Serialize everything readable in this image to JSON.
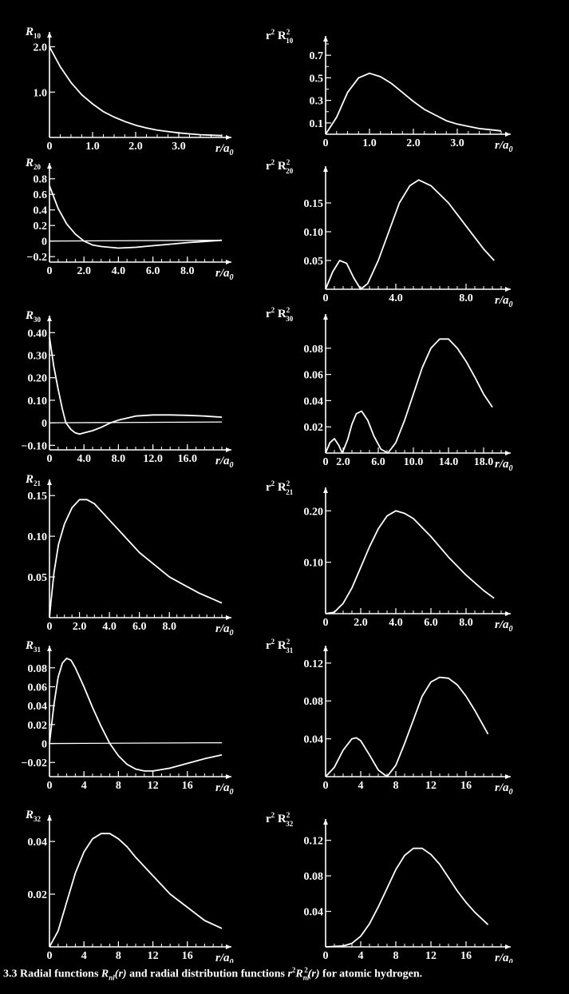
{
  "caption": {
    "number": "3.3",
    "text_a": " Radial functions ",
    "func_R": "R",
    "sub_nl": "nl",
    "arg_r": "(r)",
    "text_b": " and radial distribution functions ",
    "func_r2R2": "r",
    "sup2": "2",
    "R2": "R",
    "sub_nl2": "nl",
    "sup2b": "2",
    "arg_r2": "(r)",
    "text_c": " for atomic hydrogen."
  },
  "chart_data": [
    {
      "id": "R10",
      "type": "line",
      "title_main": "R",
      "title_sub": "10",
      "title_prefix": "",
      "title_sup": "",
      "xlabel": "r/a",
      "xlabel_sub": "0",
      "xlim": [
        0,
        4.0
      ],
      "ylim": [
        0,
        2.15
      ],
      "xticks": [
        0,
        1.0,
        2.0,
        3.0
      ],
      "xtick_labels": [
        "0",
        "1.0",
        "2.0",
        "3.0"
      ],
      "yticks": [
        1.0,
        2.0
      ],
      "ytick_labels": [
        "1.0",
        "2.0"
      ],
      "minor_x": 0.25,
      "zero_line": false,
      "series": [
        {
          "x": [
            0,
            0.25,
            0.5,
            0.75,
            1.0,
            1.25,
            1.5,
            1.75,
            2.0,
            2.25,
            2.5,
            2.75,
            3.0,
            3.25,
            3.5,
            3.75,
            4.0
          ],
          "y": [
            2.0,
            1.56,
            1.21,
            0.94,
            0.74,
            0.57,
            0.45,
            0.35,
            0.27,
            0.21,
            0.16,
            0.13,
            0.1,
            0.08,
            0.06,
            0.05,
            0.04
          ]
        }
      ]
    },
    {
      "id": "r2R10",
      "type": "line",
      "title_main": "R",
      "title_sub": "10",
      "title_prefix": "r",
      "title_sup": "2",
      "title_sup2": "2",
      "xlabel": "r/a",
      "xlabel_sub": "0",
      "xlim": [
        0,
        4.0
      ],
      "ylim": [
        0,
        0.8
      ],
      "xticks": [
        0,
        1.0,
        2.0,
        3.0
      ],
      "xtick_labels": [
        "0",
        "1.0",
        "2.0",
        "3.0"
      ],
      "yticks": [
        0.1,
        0.3,
        0.5,
        0.7
      ],
      "ytick_labels": [
        "0.1",
        "0.3",
        "0.5",
        "0.7"
      ],
      "minor_x": 0.25,
      "minor_y": 0.1,
      "zero_line": false,
      "series": [
        {
          "x": [
            0,
            0.25,
            0.5,
            0.75,
            1.0,
            1.25,
            1.5,
            1.75,
            2.0,
            2.25,
            2.5,
            2.75,
            3.0,
            3.25,
            3.5,
            3.75,
            4.0
          ],
          "y": [
            0,
            0.15,
            0.37,
            0.5,
            0.54,
            0.51,
            0.45,
            0.37,
            0.29,
            0.22,
            0.17,
            0.12,
            0.09,
            0.07,
            0.05,
            0.04,
            0.03
          ]
        }
      ]
    },
    {
      "id": "R20",
      "type": "line",
      "title_main": "R",
      "title_sub": "20",
      "title_prefix": "",
      "title_sup": "",
      "xlabel": "r/a",
      "xlabel_sub": "0",
      "xlim": [
        0,
        10.0
      ],
      "ylim": [
        -0.27,
        0.9
      ],
      "xticks": [
        0,
        2.0,
        4.0,
        6.0,
        8.0
      ],
      "xtick_labels": [
        "0",
        "2.0",
        "4.0",
        "6.0",
        "8.0"
      ],
      "yticks": [
        -0.2,
        0,
        0.2,
        0.4,
        0.6,
        0.8
      ],
      "ytick_labels": [
        "−0.2",
        "0",
        "0.2",
        "0.4",
        "0.6",
        "0.8"
      ],
      "minor_x": 0.5,
      "zero_line": true,
      "series": [
        {
          "x": [
            0,
            0.5,
            1.0,
            1.5,
            2.0,
            2.5,
            3.0,
            4.0,
            5.0,
            6.0,
            7.0,
            8.0,
            9.0,
            10.0
          ],
          "y": [
            0.71,
            0.42,
            0.22,
            0.09,
            0.0,
            -0.05,
            -0.07,
            -0.09,
            -0.08,
            -0.06,
            -0.04,
            -0.02,
            -0.005,
            0.01
          ]
        }
      ]
    },
    {
      "id": "r2R20",
      "type": "line",
      "title_main": "R",
      "title_sub": "20",
      "title_prefix": "r",
      "title_sup": "2",
      "title_sup2": "2",
      "xlabel": "r/a",
      "xlabel_sub": "0",
      "xlim": [
        0,
        10.0
      ],
      "ylim": [
        0,
        0.2
      ],
      "xticks": [
        0,
        4.0,
        8.0
      ],
      "xtick_labels": [
        "0",
        "4.0",
        "8.0"
      ],
      "yticks": [
        0.05,
        0.1,
        0.15
      ],
      "ytick_labels": [
        "0.05",
        "0.10",
        "0.15"
      ],
      "minor_x": 0.5,
      "zero_line": false,
      "series": [
        {
          "x": [
            0,
            0.4,
            0.8,
            1.2,
            1.6,
            2.0,
            2.4,
            3.0,
            3.6,
            4.2,
            4.8,
            5.3,
            6.0,
            7.0,
            8.0,
            9.0,
            9.6
          ],
          "y": [
            0,
            0.03,
            0.05,
            0.045,
            0.02,
            0.0,
            0.01,
            0.05,
            0.1,
            0.15,
            0.18,
            0.19,
            0.18,
            0.15,
            0.11,
            0.07,
            0.05
          ]
        }
      ]
    },
    {
      "id": "R30",
      "type": "line",
      "title_main": "R",
      "title_sub": "30",
      "title_prefix": "",
      "title_sup": "",
      "xlabel": "r/a",
      "xlabel_sub": "0",
      "xlim": [
        0,
        20.0
      ],
      "ylim": [
        -0.12,
        0.44
      ],
      "xticks": [
        0,
        4.0,
        8.0,
        12.0,
        16.0
      ],
      "xtick_labels": [
        "0",
        "4.0",
        "8.0",
        "12.0",
        "16.0"
      ],
      "yticks": [
        -0.1,
        0,
        0.1,
        0.2,
        0.3,
        0.4
      ],
      "ytick_labels": [
        "−0.10",
        "0",
        "0.10",
        "0.20",
        "0.30",
        "0.40"
      ],
      "minor_x": 1.0,
      "zero_line": true,
      "series": [
        {
          "x": [
            0,
            0.5,
            1.0,
            1.5,
            1.9,
            2.5,
            3.0,
            3.5,
            4.0,
            5.0,
            6.0,
            7.1,
            8.0,
            10.0,
            12.0,
            14.0,
            16.0,
            18.0,
            20.0
          ],
          "y": [
            0.38,
            0.25,
            0.15,
            0.06,
            0.0,
            -0.03,
            -0.045,
            -0.05,
            -0.045,
            -0.035,
            -0.02,
            0.0,
            0.012,
            0.03,
            0.035,
            0.035,
            0.033,
            0.03,
            0.025
          ]
        }
      ]
    },
    {
      "id": "r2R30",
      "type": "line",
      "title_main": "R",
      "title_sub": "30",
      "title_prefix": "r",
      "title_sup": "2",
      "title_sup2": "2",
      "xlabel": "r/a",
      "xlabel_sub": "0",
      "xlim": [
        0,
        20.0
      ],
      "ylim": [
        0,
        0.1
      ],
      "xticks": [
        0,
        2.0,
        6.0,
        10.0,
        14.0,
        18.0
      ],
      "xtick_labels": [
        "0",
        "2.0",
        "6.0",
        "10.0",
        "14.0",
        "18.0"
      ],
      "yticks": [
        0.02,
        0.04,
        0.06,
        0.08
      ],
      "ytick_labels": [
        "0.02",
        "0.04",
        "0.06",
        "0.08"
      ],
      "minor_x": 1.0,
      "zero_line": false,
      "series": [
        {
          "x": [
            0,
            0.5,
            1.0,
            1.5,
            1.9,
            2.5,
            3.0,
            3.5,
            4.1,
            4.8,
            5.5,
            6.3,
            7.1,
            8.0,
            9.0,
            10.0,
            11.0,
            12.0,
            13.0,
            14.0,
            15.0,
            16.0,
            17.0,
            18.0,
            19.0
          ],
          "y": [
            0,
            0.008,
            0.011,
            0.006,
            0.0,
            0.01,
            0.022,
            0.03,
            0.032,
            0.025,
            0.013,
            0.003,
            0.0,
            0.008,
            0.025,
            0.045,
            0.065,
            0.08,
            0.087,
            0.087,
            0.08,
            0.07,
            0.058,
            0.045,
            0.035
          ]
        }
      ]
    },
    {
      "id": "R21",
      "type": "line",
      "title_main": "R",
      "title_sub": "21",
      "title_prefix": "",
      "title_sup": "",
      "xlabel": "r/a",
      "xlabel_sub": "0",
      "xlim": [
        0,
        11.5
      ],
      "ylim": [
        0,
        0.16
      ],
      "xticks": [
        0,
        2.0,
        4.0,
        6.0,
        8.0
      ],
      "xtick_labels": [
        "0",
        "2.0",
        "4.0",
        "6.0",
        "8.0"
      ],
      "yticks": [
        0.05,
        0.1,
        0.15
      ],
      "ytick_labels": [
        "0.05",
        "0.10",
        "0.15"
      ],
      "minor_x": 0.5,
      "zero_line": false,
      "series": [
        {
          "x": [
            0,
            0.1,
            0.3,
            0.6,
            1.0,
            1.5,
            2.0,
            2.5,
            3.0,
            4.0,
            5.0,
            6.0,
            7.0,
            8.0,
            9.0,
            10.0,
            11.0,
            11.5
          ],
          "y": [
            0,
            0.02,
            0.055,
            0.09,
            0.115,
            0.135,
            0.145,
            0.145,
            0.14,
            0.12,
            0.1,
            0.08,
            0.065,
            0.05,
            0.04,
            0.03,
            0.022,
            0.018
          ]
        }
      ]
    },
    {
      "id": "r2R21",
      "type": "line",
      "title_main": "R",
      "title_sub": "21",
      "title_prefix": "r",
      "title_sup": "2",
      "title_sup2": "2",
      "xlabel": "r/a",
      "xlabel_sub": "0",
      "xlim": [
        0,
        10.0
      ],
      "ylim": [
        0,
        0.23
      ],
      "xticks": [
        0,
        2.0,
        4.0,
        6.0,
        8.0
      ],
      "xtick_labels": [
        "0",
        "2.0",
        "4.0",
        "6.0",
        "8.0"
      ],
      "yticks": [
        0.1,
        0.2
      ],
      "ytick_labels": [
        "0.10",
        "0.20"
      ],
      "minor_x": 0.5,
      "zero_line": false,
      "series": [
        {
          "x": [
            0,
            0.5,
            1.0,
            1.5,
            2.0,
            2.5,
            3.0,
            3.5,
            4.0,
            4.5,
            5.0,
            6.0,
            7.0,
            8.0,
            9.0,
            9.6
          ],
          "y": [
            0,
            0.003,
            0.02,
            0.05,
            0.09,
            0.13,
            0.165,
            0.19,
            0.2,
            0.195,
            0.185,
            0.15,
            0.11,
            0.075,
            0.045,
            0.03
          ]
        }
      ]
    },
    {
      "id": "R31",
      "type": "line",
      "title_main": "R",
      "title_sub": "31",
      "title_prefix": "",
      "title_sup": "",
      "xlabel": "r/a",
      "xlabel_sub": "0",
      "xlim": [
        0,
        20.0
      ],
      "ylim": [
        -0.035,
        0.095
      ],
      "xticks": [
        0,
        4,
        8,
        12,
        16
      ],
      "xtick_labels": [
        "0",
        "4",
        "8",
        "12",
        "16"
      ],
      "yticks": [
        -0.02,
        0,
        0.02,
        0.04,
        0.06,
        0.08
      ],
      "ytick_labels": [
        "−0.02",
        "0",
        "0.02",
        "0.04",
        "0.06",
        "0.08"
      ],
      "minor_x": 1.0,
      "zero_line": true,
      "series": [
        {
          "x": [
            0,
            0.5,
            1.0,
            1.5,
            2.0,
            2.5,
            3.0,
            4.0,
            5.0,
            6.0,
            7.0,
            8.0,
            9.0,
            10.0,
            11.0,
            12.0,
            14.0,
            16.0,
            18.0,
            20.0
          ],
          "y": [
            0,
            0.04,
            0.07,
            0.085,
            0.09,
            0.088,
            0.08,
            0.06,
            0.038,
            0.018,
            0.0,
            -0.013,
            -0.022,
            -0.027,
            -0.029,
            -0.029,
            -0.026,
            -0.021,
            -0.016,
            -0.012
          ]
        }
      ]
    },
    {
      "id": "r2R31",
      "type": "line",
      "title_main": "R",
      "title_sub": "31",
      "title_prefix": "r",
      "title_sup": "2",
      "title_sup2": "2",
      "xlabel": "r/a",
      "xlabel_sub": "0",
      "xlim": [
        0,
        20.0
      ],
      "ylim": [
        0,
        0.13
      ],
      "xticks": [
        0,
        4,
        8,
        12,
        16
      ],
      "xtick_labels": [
        "0",
        "4",
        "8",
        "12",
        "16"
      ],
      "yticks": [
        0.04,
        0.08,
        0.12
      ],
      "ytick_labels": [
        "0.04",
        "0.08",
        "0.12"
      ],
      "minor_x": 1.0,
      "zero_line": false,
      "series": [
        {
          "x": [
            0,
            1.0,
            2.0,
            3.0,
            3.5,
            4.0,
            5.0,
            6.0,
            7.0,
            8.0,
            9.0,
            10.0,
            11.0,
            12.0,
            13.0,
            14.0,
            15.0,
            16.0,
            17.0,
            18.5
          ],
          "y": [
            0,
            0.01,
            0.028,
            0.04,
            0.041,
            0.038,
            0.023,
            0.007,
            0.0,
            0.012,
            0.035,
            0.06,
            0.085,
            0.1,
            0.105,
            0.104,
            0.097,
            0.085,
            0.07,
            0.045
          ]
        }
      ]
    },
    {
      "id": "R32",
      "type": "line",
      "title_main": "R",
      "title_sub": "32",
      "title_prefix": "",
      "title_sup": "",
      "xlabel": "r/a",
      "xlabel_sub": "0",
      "xlim": [
        0,
        20.0
      ],
      "ylim": [
        0,
        0.047
      ],
      "xticks": [
        0,
        4,
        8,
        12,
        16
      ],
      "xtick_labels": [
        "0",
        "4",
        "8",
        "12",
        "16"
      ],
      "yticks": [
        0.02,
        0.04
      ],
      "ytick_labels": [
        "0.02",
        "0.04"
      ],
      "minor_x": 1.0,
      "zero_line": false,
      "series": [
        {
          "x": [
            0,
            1.0,
            2.0,
            3.0,
            4.0,
            5.0,
            6.0,
            7.0,
            8.0,
            9.0,
            10.0,
            12.0,
            14.0,
            16.0,
            18.0,
            20.0
          ],
          "y": [
            0,
            0.006,
            0.017,
            0.028,
            0.036,
            0.041,
            0.043,
            0.043,
            0.041,
            0.038,
            0.034,
            0.027,
            0.02,
            0.015,
            0.01,
            0.007
          ]
        }
      ]
    },
    {
      "id": "r2R32",
      "type": "line",
      "title_main": "R",
      "title_sub": "32",
      "title_prefix": "r",
      "title_sup": "2",
      "title_sup2": "2",
      "xlabel": "r/a",
      "xlabel_sub": "0",
      "xlim": [
        0,
        20.0
      ],
      "ylim": [
        0,
        0.135
      ],
      "xticks": [
        0,
        4,
        8,
        12,
        16
      ],
      "xtick_labels": [
        "0",
        "4",
        "8",
        "12",
        "16"
      ],
      "yticks": [
        0.04,
        0.08,
        0.12
      ],
      "ytick_labels": [
        "0.04",
        "0.08",
        "0.12"
      ],
      "minor_x": 1.0,
      "zero_line": false,
      "series": [
        {
          "x": [
            0,
            2.0,
            3.0,
            4.0,
            5.0,
            6.0,
            7.0,
            8.0,
            9.0,
            10.0,
            11.0,
            12.0,
            13.0,
            14.0,
            15.0,
            16.0,
            17.0,
            18.5
          ],
          "y": [
            0,
            0.001,
            0.004,
            0.012,
            0.026,
            0.045,
            0.066,
            0.087,
            0.103,
            0.111,
            0.111,
            0.104,
            0.093,
            0.078,
            0.063,
            0.05,
            0.039,
            0.025
          ]
        }
      ]
    }
  ]
}
